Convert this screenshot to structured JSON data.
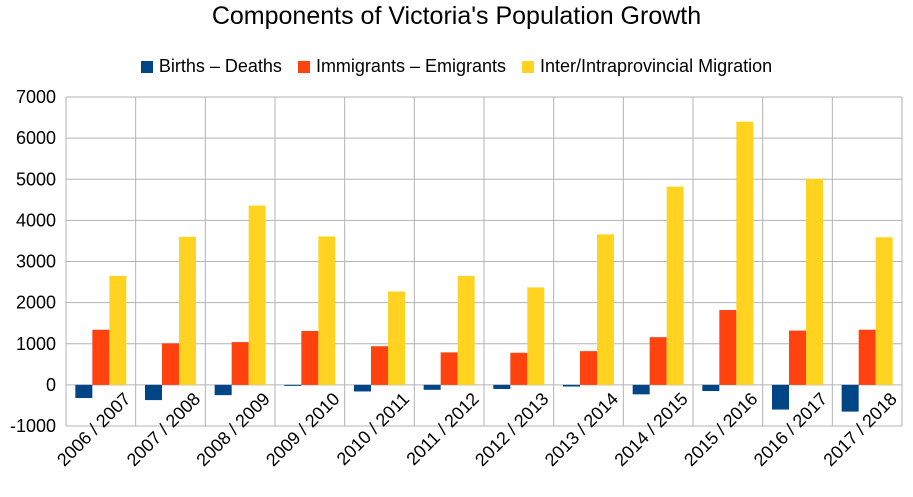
{
  "chart_data": {
    "type": "bar",
    "title": "Components of Victoria's Population Growth",
    "xlabel": "",
    "ylabel": "",
    "ylim": [
      -1000,
      7000
    ],
    "yticks": [
      -1000,
      0,
      1000,
      2000,
      3000,
      4000,
      5000,
      6000,
      7000
    ],
    "grid": true,
    "legend_position": "top",
    "categories": [
      "2006 / 2007",
      "2007 / 2008",
      "2008 / 2009",
      "2009 / 2010",
      "2010 / 2011",
      "2011 / 2012",
      "2012 / 2013",
      "2013 / 2014",
      "2014 / 2015",
      "2015 / 2016",
      "2016 / 2017",
      "2017 / 2018"
    ],
    "series": [
      {
        "name": "Births – Deaths",
        "color": "#004586",
        "values": [
          -320,
          -370,
          -250,
          -20,
          -160,
          -120,
          -100,
          -40,
          -230,
          -150,
          -600,
          -650
        ]
      },
      {
        "name": "Immigrants – Emigrants",
        "color": "#ff420e",
        "values": [
          1340,
          1010,
          1040,
          1310,
          940,
          790,
          780,
          820,
          1160,
          1820,
          1320,
          1340
        ]
      },
      {
        "name": "Inter/Intraprovincial Migration",
        "color": "#ffd320",
        "values": [
          2650,
          3600,
          4360,
          3610,
          2270,
          2650,
          2370,
          3660,
          4820,
          6400,
          5010,
          3590
        ]
      }
    ]
  }
}
